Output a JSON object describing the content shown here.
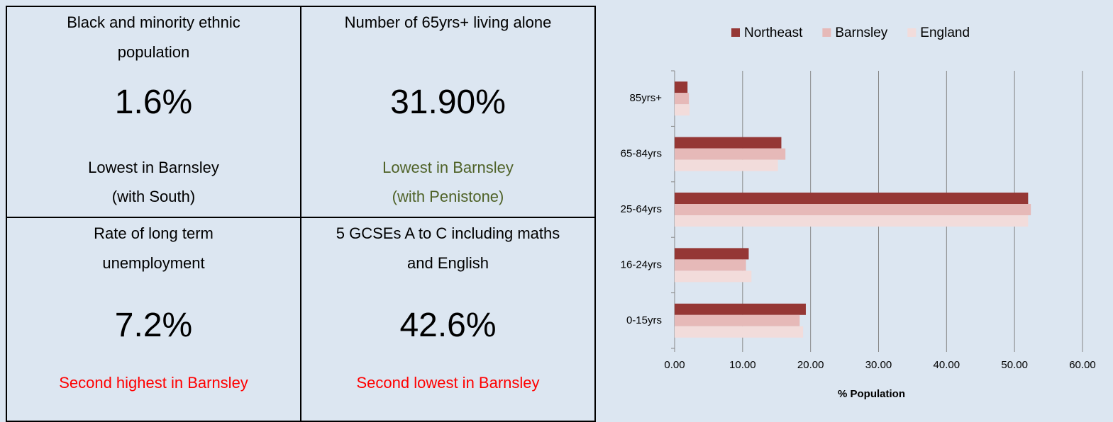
{
  "cells": [
    {
      "title": [
        "Black and minority ethnic",
        "population"
      ],
      "value": "1.6%",
      "note": [
        "Lowest in Barnsley",
        "(with South)"
      ],
      "note_color": "#000000"
    },
    {
      "title": [
        "Number of 65yrs+ living alone"
      ],
      "value": "31.90%",
      "note": [
        "Lowest in Barnsley",
        "(with Penistone)"
      ],
      "note_color": "#4f6228"
    },
    {
      "title": [
        "Rate of long term",
        "unemployment"
      ],
      "value": "7.2%",
      "note": [
        "Second highest in Barnsley"
      ],
      "note_color": "#ff0000"
    },
    {
      "title": [
        "5 GCSEs A to C including maths",
        "and English"
      ],
      "value": "42.6%",
      "note": [
        "Second lowest in Barnsley"
      ],
      "note_color": "#ff0000"
    }
  ],
  "chart_data": {
    "type": "hbar",
    "categories": [
      "85yrs+",
      "65-84yrs",
      "25-64yrs",
      "16-24yrs",
      "0-15yrs"
    ],
    "series": [
      {
        "name": "Northeast",
        "color": "#953735",
        "values": [
          1.9,
          15.7,
          52.0,
          10.9,
          19.3
        ]
      },
      {
        "name": "Barnsley",
        "color": "#e6b9b8",
        "values": [
          2.1,
          16.3,
          52.4,
          10.5,
          18.4
        ]
      },
      {
        "name": "England",
        "color": "#f2dcdb",
        "values": [
          2.2,
          15.2,
          52.0,
          11.3,
          18.9
        ]
      }
    ],
    "xlabel": "% Population",
    "xlim": [
      0,
      60
    ],
    "xticks": [
      {
        "value": 0,
        "label": "0.00"
      },
      {
        "value": 10,
        "label": "10.00"
      },
      {
        "value": 20,
        "label": "20.00"
      },
      {
        "value": 30,
        "label": "30.00"
      },
      {
        "value": 40,
        "label": "40.00"
      },
      {
        "value": 50,
        "label": "50.00"
      },
      {
        "value": 60,
        "label": "60.00"
      }
    ],
    "grid": true,
    "legend": "top"
  }
}
